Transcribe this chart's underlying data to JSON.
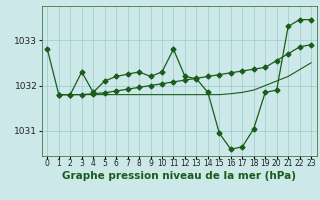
{
  "xlabel": "Graphe pression niveau de la mer (hPa)",
  "hours": [
    0,
    1,
    2,
    3,
    4,
    5,
    6,
    7,
    8,
    9,
    10,
    11,
    12,
    13,
    14,
    15,
    16,
    17,
    18,
    19,
    20,
    21,
    22,
    23
  ],
  "line1": [
    1032.8,
    1031.8,
    1031.8,
    1032.3,
    1031.85,
    1032.1,
    1032.2,
    1032.25,
    1032.3,
    1032.2,
    1032.3,
    1032.8,
    1032.2,
    1032.15,
    1031.85,
    1030.95,
    1030.6,
    1030.65,
    1031.05,
    1031.85,
    1031.9,
    1033.3,
    1033.45,
    1033.45
  ],
  "line2_x": [
    1,
    2,
    3,
    4,
    5,
    6,
    7,
    8,
    9,
    10,
    11,
    12,
    13,
    14,
    15,
    16,
    17,
    18,
    19,
    20,
    21,
    22,
    23
  ],
  "line2": [
    1031.8,
    1031.8,
    1031.8,
    1031.82,
    1031.84,
    1031.88,
    1031.92,
    1031.96,
    1032.0,
    1032.04,
    1032.08,
    1032.12,
    1032.16,
    1032.2,
    1032.24,
    1032.28,
    1032.32,
    1032.36,
    1032.4,
    1032.55,
    1032.7,
    1032.85,
    1032.9
  ],
  "line3_x": [
    1,
    2,
    3,
    4,
    5,
    6,
    7,
    8,
    9,
    10,
    11,
    12,
    13,
    14,
    15,
    16,
    17,
    18,
    19,
    20,
    21,
    22,
    23
  ],
  "line3": [
    1031.8,
    1031.8,
    1031.8,
    1031.8,
    1031.8,
    1031.8,
    1031.8,
    1031.8,
    1031.8,
    1031.8,
    1031.8,
    1031.8,
    1031.8,
    1031.8,
    1031.8,
    1031.82,
    1031.85,
    1031.9,
    1032.0,
    1032.1,
    1032.2,
    1032.35,
    1032.5
  ],
  "bg_color": "#cce8e8",
  "grid_color": "#99cccc",
  "line_color": "#1a5c1a",
  "marker": "D",
  "marker_size": 2.5,
  "ylim": [
    1030.45,
    1033.75
  ],
  "yticks": [
    1031,
    1032,
    1033
  ],
  "ytick_fontsize": 6.5,
  "xtick_fontsize": 5.5,
  "xlabel_fontsize": 7.5
}
